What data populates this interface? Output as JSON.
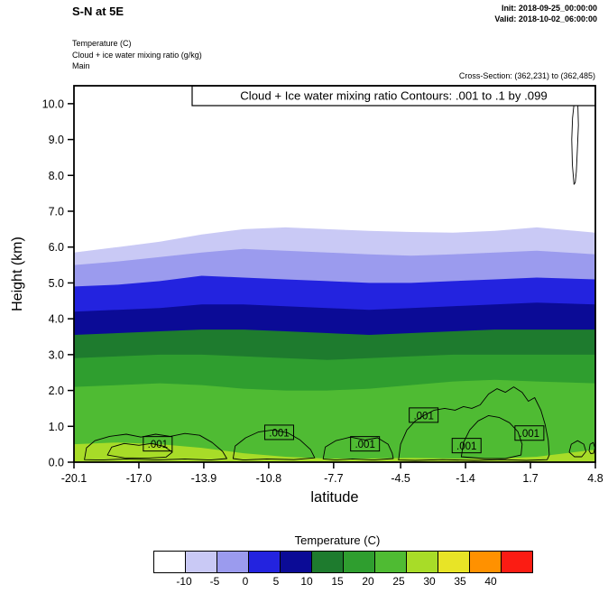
{
  "header": {
    "title": "S-N at 5E",
    "init_label": "Init: 2018-09-25_00:00:00",
    "valid_label": "Valid: 2018-10-02_06:00:00",
    "field_lines": [
      "Temperature   (C)",
      "Cloud + ice water mixing ratio   (g/kg)",
      "Main"
    ],
    "cross_section_label": "Cross-Section: (362,231) to (362,485)"
  },
  "chart_data": {
    "type": "filled-contour-cross-section",
    "contour_info_box": "Cloud + Ice water mixing ratio Contours: .001 to .1 by .099",
    "xlabel": "latitude",
    "ylabel": "Height (km)",
    "xlim": [
      -20.1,
      4.8
    ],
    "ylim": [
      0,
      10.5
    ],
    "x_ticks": [
      -20.1,
      -17.0,
      -13.9,
      -10.8,
      -7.7,
      -4.5,
      -1.4,
      1.7,
      4.8
    ],
    "x_tick_labels": [
      "-20.1",
      "-17.0",
      "-13.9",
      "-10.8",
      "-7.7",
      "-4.5",
      "-1.4",
      "1.7",
      "4.8"
    ],
    "y_ticks": [
      0,
      1,
      2,
      3,
      4,
      5,
      6,
      7,
      8,
      9,
      10
    ],
    "y_tick_labels": [
      "0.0",
      "1.0",
      "2.0",
      "3.0",
      "4.0",
      "5.0",
      "6.0",
      "7.0",
      "8.0",
      "9.0",
      "10.0"
    ],
    "temperature_fill": {
      "units": "C",
      "x": [
        -20.1,
        -18,
        -16,
        -14,
        -12,
        -10,
        -8,
        -6,
        -4,
        -2,
        0,
        2,
        4.8
      ],
      "levels": [
        {
          "level": -10,
          "color": "#c9c9f5",
          "top_km": [
            5.85,
            6.0,
            6.15,
            6.35,
            6.5,
            6.55,
            6.5,
            6.45,
            6.42,
            6.4,
            6.45,
            6.55,
            6.4
          ]
        },
        {
          "level": -5,
          "color": "#9b9bee",
          "top_km": [
            5.5,
            5.6,
            5.72,
            5.85,
            5.95,
            5.9,
            5.85,
            5.8,
            5.76,
            5.8,
            5.85,
            5.9,
            5.8
          ]
        },
        {
          "level": 0,
          "color": "#2323df",
          "top_km": [
            4.9,
            4.95,
            5.05,
            5.2,
            5.15,
            5.1,
            5.05,
            5.0,
            5.0,
            5.05,
            5.1,
            5.15,
            5.1
          ]
        },
        {
          "level": 5,
          "color": "#0b0b96",
          "top_km": [
            4.2,
            4.25,
            4.3,
            4.4,
            4.4,
            4.35,
            4.3,
            4.25,
            4.3,
            4.35,
            4.4,
            4.45,
            4.4
          ]
        },
        {
          "level": 10,
          "color": "#1e7b2e",
          "top_km": [
            3.55,
            3.6,
            3.65,
            3.7,
            3.7,
            3.65,
            3.6,
            3.55,
            3.6,
            3.65,
            3.7,
            3.7,
            3.7
          ]
        },
        {
          "level": 15,
          "color": "#2f9e2f",
          "top_km": [
            2.9,
            2.95,
            3.0,
            3.0,
            2.95,
            2.9,
            2.85,
            2.9,
            2.95,
            3.0,
            3.0,
            3.0,
            3.0
          ]
        },
        {
          "level": 20,
          "color": "#4fbb33",
          "top_km": [
            2.1,
            2.15,
            2.2,
            2.15,
            2.05,
            2.0,
            2.0,
            2.05,
            2.15,
            2.25,
            2.3,
            2.25,
            2.2
          ]
        },
        {
          "level": 25,
          "color": "#a8dc28",
          "top_km": [
            0.5,
            0.55,
            0.5,
            0.4,
            0.25,
            0.15,
            0.1,
            0.1,
            0.12,
            0.1,
            0.1,
            0.15,
            0.35
          ]
        }
      ]
    },
    "cloud_contours": {
      "units": "g/kg",
      "levels": [
        0.001,
        0.1
      ],
      "value_labels": [
        {
          "text": ".001",
          "lat": -16.1,
          "km": 0.5
        },
        {
          "text": ".001",
          "lat": -10.3,
          "km": 0.82
        },
        {
          "text": ".001",
          "lat": -6.2,
          "km": 0.5
        },
        {
          "text": ".001",
          "lat": -3.4,
          "km": 1.3
        },
        {
          "text": ".001",
          "lat": -1.35,
          "km": 0.45
        },
        {
          "text": ".001",
          "lat": 1.65,
          "km": 0.8
        }
      ],
      "loops": [
        {
          "level": ".001",
          "points": [
            [
              -19.6,
              0.07
            ],
            [
              -19.5,
              0.4
            ],
            [
              -19.1,
              0.6
            ],
            [
              -18.4,
              0.72
            ],
            [
              -17.6,
              0.78
            ],
            [
              -16.9,
              0.7
            ],
            [
              -16.2,
              0.78
            ],
            [
              -15.5,
              0.72
            ],
            [
              -14.8,
              0.8
            ],
            [
              -14.1,
              0.75
            ],
            [
              -13.5,
              0.55
            ],
            [
              -13.0,
              0.3
            ],
            [
              -12.8,
              0.1
            ],
            [
              -13.6,
              0.06
            ],
            [
              -14.8,
              0.09
            ],
            [
              -16.2,
              0.06
            ],
            [
              -17.6,
              0.09
            ],
            [
              -18.8,
              0.06
            ]
          ]
        },
        {
          "level": ".1",
          "points": [
            [
              -18.5,
              0.2
            ],
            [
              -18.3,
              0.42
            ],
            [
              -17.7,
              0.52
            ],
            [
              -17.0,
              0.47
            ],
            [
              -16.4,
              0.52
            ],
            [
              -15.8,
              0.44
            ],
            [
              -15.4,
              0.28
            ],
            [
              -15.7,
              0.14
            ],
            [
              -16.6,
              0.11
            ],
            [
              -17.7,
              0.12
            ]
          ]
        },
        {
          "level": ".001",
          "points": [
            [
              -12.5,
              0.1
            ],
            [
              -12.4,
              0.45
            ],
            [
              -11.9,
              0.68
            ],
            [
              -11.3,
              0.84
            ],
            [
              -10.6,
              0.9
            ],
            [
              -9.9,
              0.82
            ],
            [
              -9.3,
              0.62
            ],
            [
              -8.8,
              0.35
            ],
            [
              -8.6,
              0.12
            ],
            [
              -9.6,
              0.07
            ],
            [
              -10.9,
              0.09
            ],
            [
              -12.0,
              0.06
            ]
          ]
        },
        {
          "level": ".001",
          "points": [
            [
              -8.2,
              0.09
            ],
            [
              -8.1,
              0.42
            ],
            [
              -7.6,
              0.6
            ],
            [
              -6.9,
              0.7
            ],
            [
              -6.2,
              0.62
            ],
            [
              -5.6,
              0.68
            ],
            [
              -5.1,
              0.5
            ],
            [
              -4.9,
              0.25
            ],
            [
              -4.85,
              0.1
            ],
            [
              -5.8,
              0.06
            ],
            [
              -6.8,
              0.09
            ],
            [
              -7.6,
              0.06
            ]
          ]
        },
        {
          "level": ".001",
          "points": [
            [
              -4.6,
              0.06
            ],
            [
              -4.5,
              0.5
            ],
            [
              -4.2,
              0.9
            ],
            [
              -3.8,
              1.15
            ],
            [
              -3.4,
              1.3
            ],
            [
              -2.9,
              1.45
            ],
            [
              -2.4,
              1.5
            ],
            [
              -1.9,
              1.45
            ],
            [
              -1.5,
              1.55
            ],
            [
              -1.1,
              1.5
            ],
            [
              -0.7,
              1.6
            ],
            [
              -0.3,
              1.9
            ],
            [
              0.1,
              2.05
            ],
            [
              0.5,
              1.95
            ],
            [
              0.9,
              2.1
            ],
            [
              1.3,
              1.95
            ],
            [
              1.6,
              1.7
            ],
            [
              1.9,
              1.8
            ],
            [
              2.2,
              1.45
            ],
            [
              2.4,
              1.05
            ],
            [
              2.55,
              0.6
            ],
            [
              2.6,
              0.2
            ],
            [
              2.5,
              0.07
            ],
            [
              1.5,
              0.05
            ],
            [
              0.3,
              0.07
            ],
            [
              -1.0,
              0.05
            ],
            [
              -2.5,
              0.07
            ],
            [
              -3.8,
              0.05
            ]
          ]
        },
        {
          "level": ".1",
          "points": [
            [
              -1.6,
              0.15
            ],
            [
              -1.5,
              0.55
            ],
            [
              -1.2,
              0.9
            ],
            [
              -0.8,
              1.15
            ],
            [
              -0.3,
              1.3
            ],
            [
              0.2,
              1.25
            ],
            [
              0.7,
              1.1
            ],
            [
              1.1,
              0.85
            ],
            [
              1.3,
              0.5
            ],
            [
              1.25,
              0.2
            ],
            [
              0.5,
              0.1
            ],
            [
              -0.5,
              0.1
            ]
          ]
        },
        {
          "level": ".001",
          "points": [
            [
              3.55,
              0.28
            ],
            [
              3.65,
              0.5
            ],
            [
              3.95,
              0.6
            ],
            [
              4.25,
              0.5
            ],
            [
              4.35,
              0.3
            ],
            [
              4.15,
              0.15
            ],
            [
              3.8,
              0.15
            ]
          ]
        },
        {
          "level": ".001",
          "points": [
            [
              4.5,
              0.32
            ],
            [
              4.55,
              0.5
            ],
            [
              4.7,
              0.55
            ],
            [
              4.78,
              0.4
            ],
            [
              4.72,
              0.25
            ],
            [
              4.58,
              0.24
            ]
          ]
        },
        {
          "level": ".001",
          "fill": "#ffffff",
          "points": [
            [
              3.78,
              7.75
            ],
            [
              3.7,
              8.3
            ],
            [
              3.67,
              9.0
            ],
            [
              3.71,
              9.6
            ],
            [
              3.8,
              10.1
            ],
            [
              3.88,
              10.35
            ],
            [
              3.96,
              10.05
            ],
            [
              3.99,
              9.4
            ],
            [
              3.94,
              8.7
            ],
            [
              3.89,
              8.1
            ],
            [
              3.84,
              7.8
            ]
          ]
        }
      ]
    },
    "colorbar": {
      "title": "Temperature  (C)",
      "colors": [
        "#ffffff",
        "#c9c9f5",
        "#9b9bee",
        "#2323df",
        "#0b0b96",
        "#1e7b2e",
        "#2f9e2f",
        "#4fbb33",
        "#a8dc28",
        "#e8e426",
        "#ff9100",
        "#fb1c13"
      ],
      "tick_labels": [
        "-10",
        "-5",
        "0",
        "5",
        "10",
        "15",
        "20",
        "25",
        "30",
        "35",
        "40"
      ]
    }
  }
}
